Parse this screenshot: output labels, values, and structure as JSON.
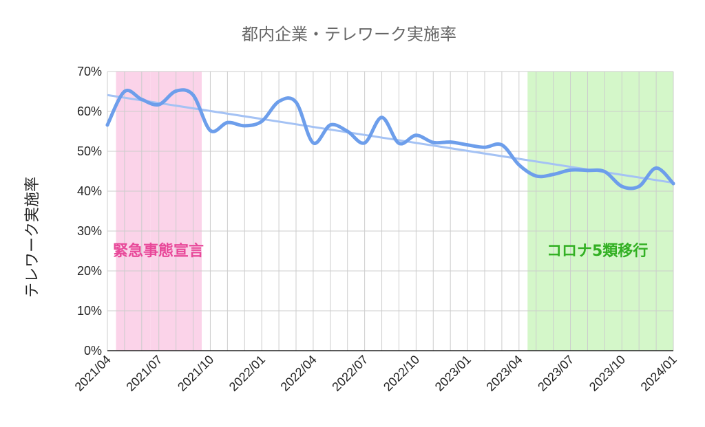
{
  "chart_data": {
    "type": "line",
    "title": "都内企業・テレワーク実施率",
    "ylabel": "テレワーク実施率",
    "xlabel": "",
    "ylim": [
      0,
      70
    ],
    "yticks": [
      "0%",
      "10%",
      "20%",
      "30%",
      "40%",
      "50%",
      "60%",
      "70%"
    ],
    "xticks": [
      "2021/04",
      "2021/07",
      "2021/10",
      "2022/01",
      "2022/04",
      "2022/07",
      "2022/10",
      "2023/01",
      "2023/04",
      "2023/07",
      "2023/10",
      "2024/01"
    ],
    "grid": true,
    "colors": {
      "line": "#6d9eeb",
      "trend": "#a4c2f4",
      "emergency_band": "#fbd3e9",
      "covid5_band": "#d4f7c9",
      "emergency_text": "#e8499a",
      "covid5_text": "#33b024"
    },
    "bands": [
      {
        "label": "緊急事態宣言",
        "ranges": [
          [
            "2021/05",
            "2021/06"
          ],
          [
            "2021/07",
            "2021/09"
          ]
        ]
      },
      {
        "label": "コロナ5類移行",
        "ranges": [
          [
            "2023/05",
            "2024/01"
          ]
        ]
      }
    ],
    "series": [
      {
        "x": [
          "2021/04",
          "2021/05",
          "2021/06",
          "2021/07",
          "2021/08",
          "2021/09",
          "2021/10",
          "2021/11",
          "2021/12",
          "2022/01",
          "2022/02",
          "2022/03",
          "2022/04",
          "2022/05",
          "2022/06",
          "2022/07",
          "2022/08",
          "2022/09",
          "2022/10",
          "2022/11",
          "2022/12",
          "2023/01",
          "2023/02",
          "2023/03",
          "2023/04",
          "2023/05",
          "2023/06",
          "2023/07",
          "2023/08",
          "2023/09",
          "2023/10",
          "2023/11",
          "2023/12",
          "2024/01"
        ],
        "values": [
          56.6,
          65.0,
          63.0,
          61.7,
          65.1,
          64.1,
          55.2,
          57.2,
          56.4,
          57.5,
          62.5,
          62.3,
          52.1,
          56.6,
          55.0,
          52.1,
          58.5,
          52.0,
          54.0,
          52.2,
          52.3,
          51.6,
          51.0,
          51.6,
          46.6,
          43.8,
          44.2,
          45.3,
          45.2,
          44.9,
          41.2,
          41.2,
          45.8,
          41.9
        ]
      }
    ],
    "trend": {
      "start": 64.1,
      "end": 42.1
    }
  }
}
